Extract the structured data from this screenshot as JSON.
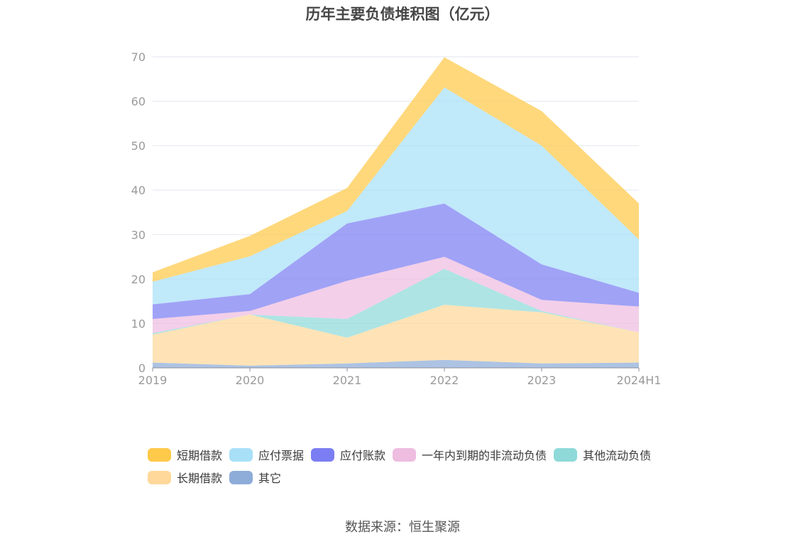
{
  "chart_data": {
    "type": "area",
    "stacked": true,
    "title": "历年主要负债堆积图（亿元）",
    "categories": [
      "2019",
      "2020",
      "2021",
      "2022",
      "2023",
      "2024H1"
    ],
    "ylim": [
      0,
      70
    ],
    "yticks": [
      0,
      10,
      20,
      30,
      40,
      50,
      60,
      70
    ],
    "grid": true,
    "legend_position": "bottom",
    "series": [
      {
        "name": "其它",
        "color": "#8eacd8",
        "values": [
          1.2,
          0.5,
          1.0,
          1.8,
          1.0,
          1.2
        ]
      },
      {
        "name": "长期借款",
        "color": "#ffd89a",
        "values": [
          6.3,
          11.5,
          5.8,
          12.4,
          11.5,
          6.8
        ]
      },
      {
        "name": "其他流动负债",
        "color": "#8fd9d9",
        "values": [
          0.3,
          0.0,
          4.2,
          8.1,
          0.3,
          0.0
        ]
      },
      {
        "name": "一年内到期的非流动负债",
        "color": "#eebde0",
        "values": [
          3.2,
          0.8,
          8.6,
          2.7,
          2.5,
          5.8
        ]
      },
      {
        "name": "应付账款",
        "color": "#7b7ef2",
        "values": [
          3.3,
          3.8,
          12.9,
          12.0,
          8.0,
          3.1
        ]
      },
      {
        "name": "应付票据",
        "color": "#a8e0f8",
        "values": [
          5.1,
          8.5,
          2.8,
          26.1,
          26.7,
          12.0
        ]
      },
      {
        "name": "短期借款",
        "color": "#ffc94a",
        "values": [
          2.1,
          4.6,
          5.2,
          6.8,
          7.8,
          8.1
        ]
      }
    ],
    "legend_order": [
      "短期借款",
      "应付票据",
      "应付账款",
      "一年内到期的非流动负债",
      "其他流动负债",
      "长期借款",
      "其它"
    ]
  },
  "source": "数据来源：恒生聚源"
}
